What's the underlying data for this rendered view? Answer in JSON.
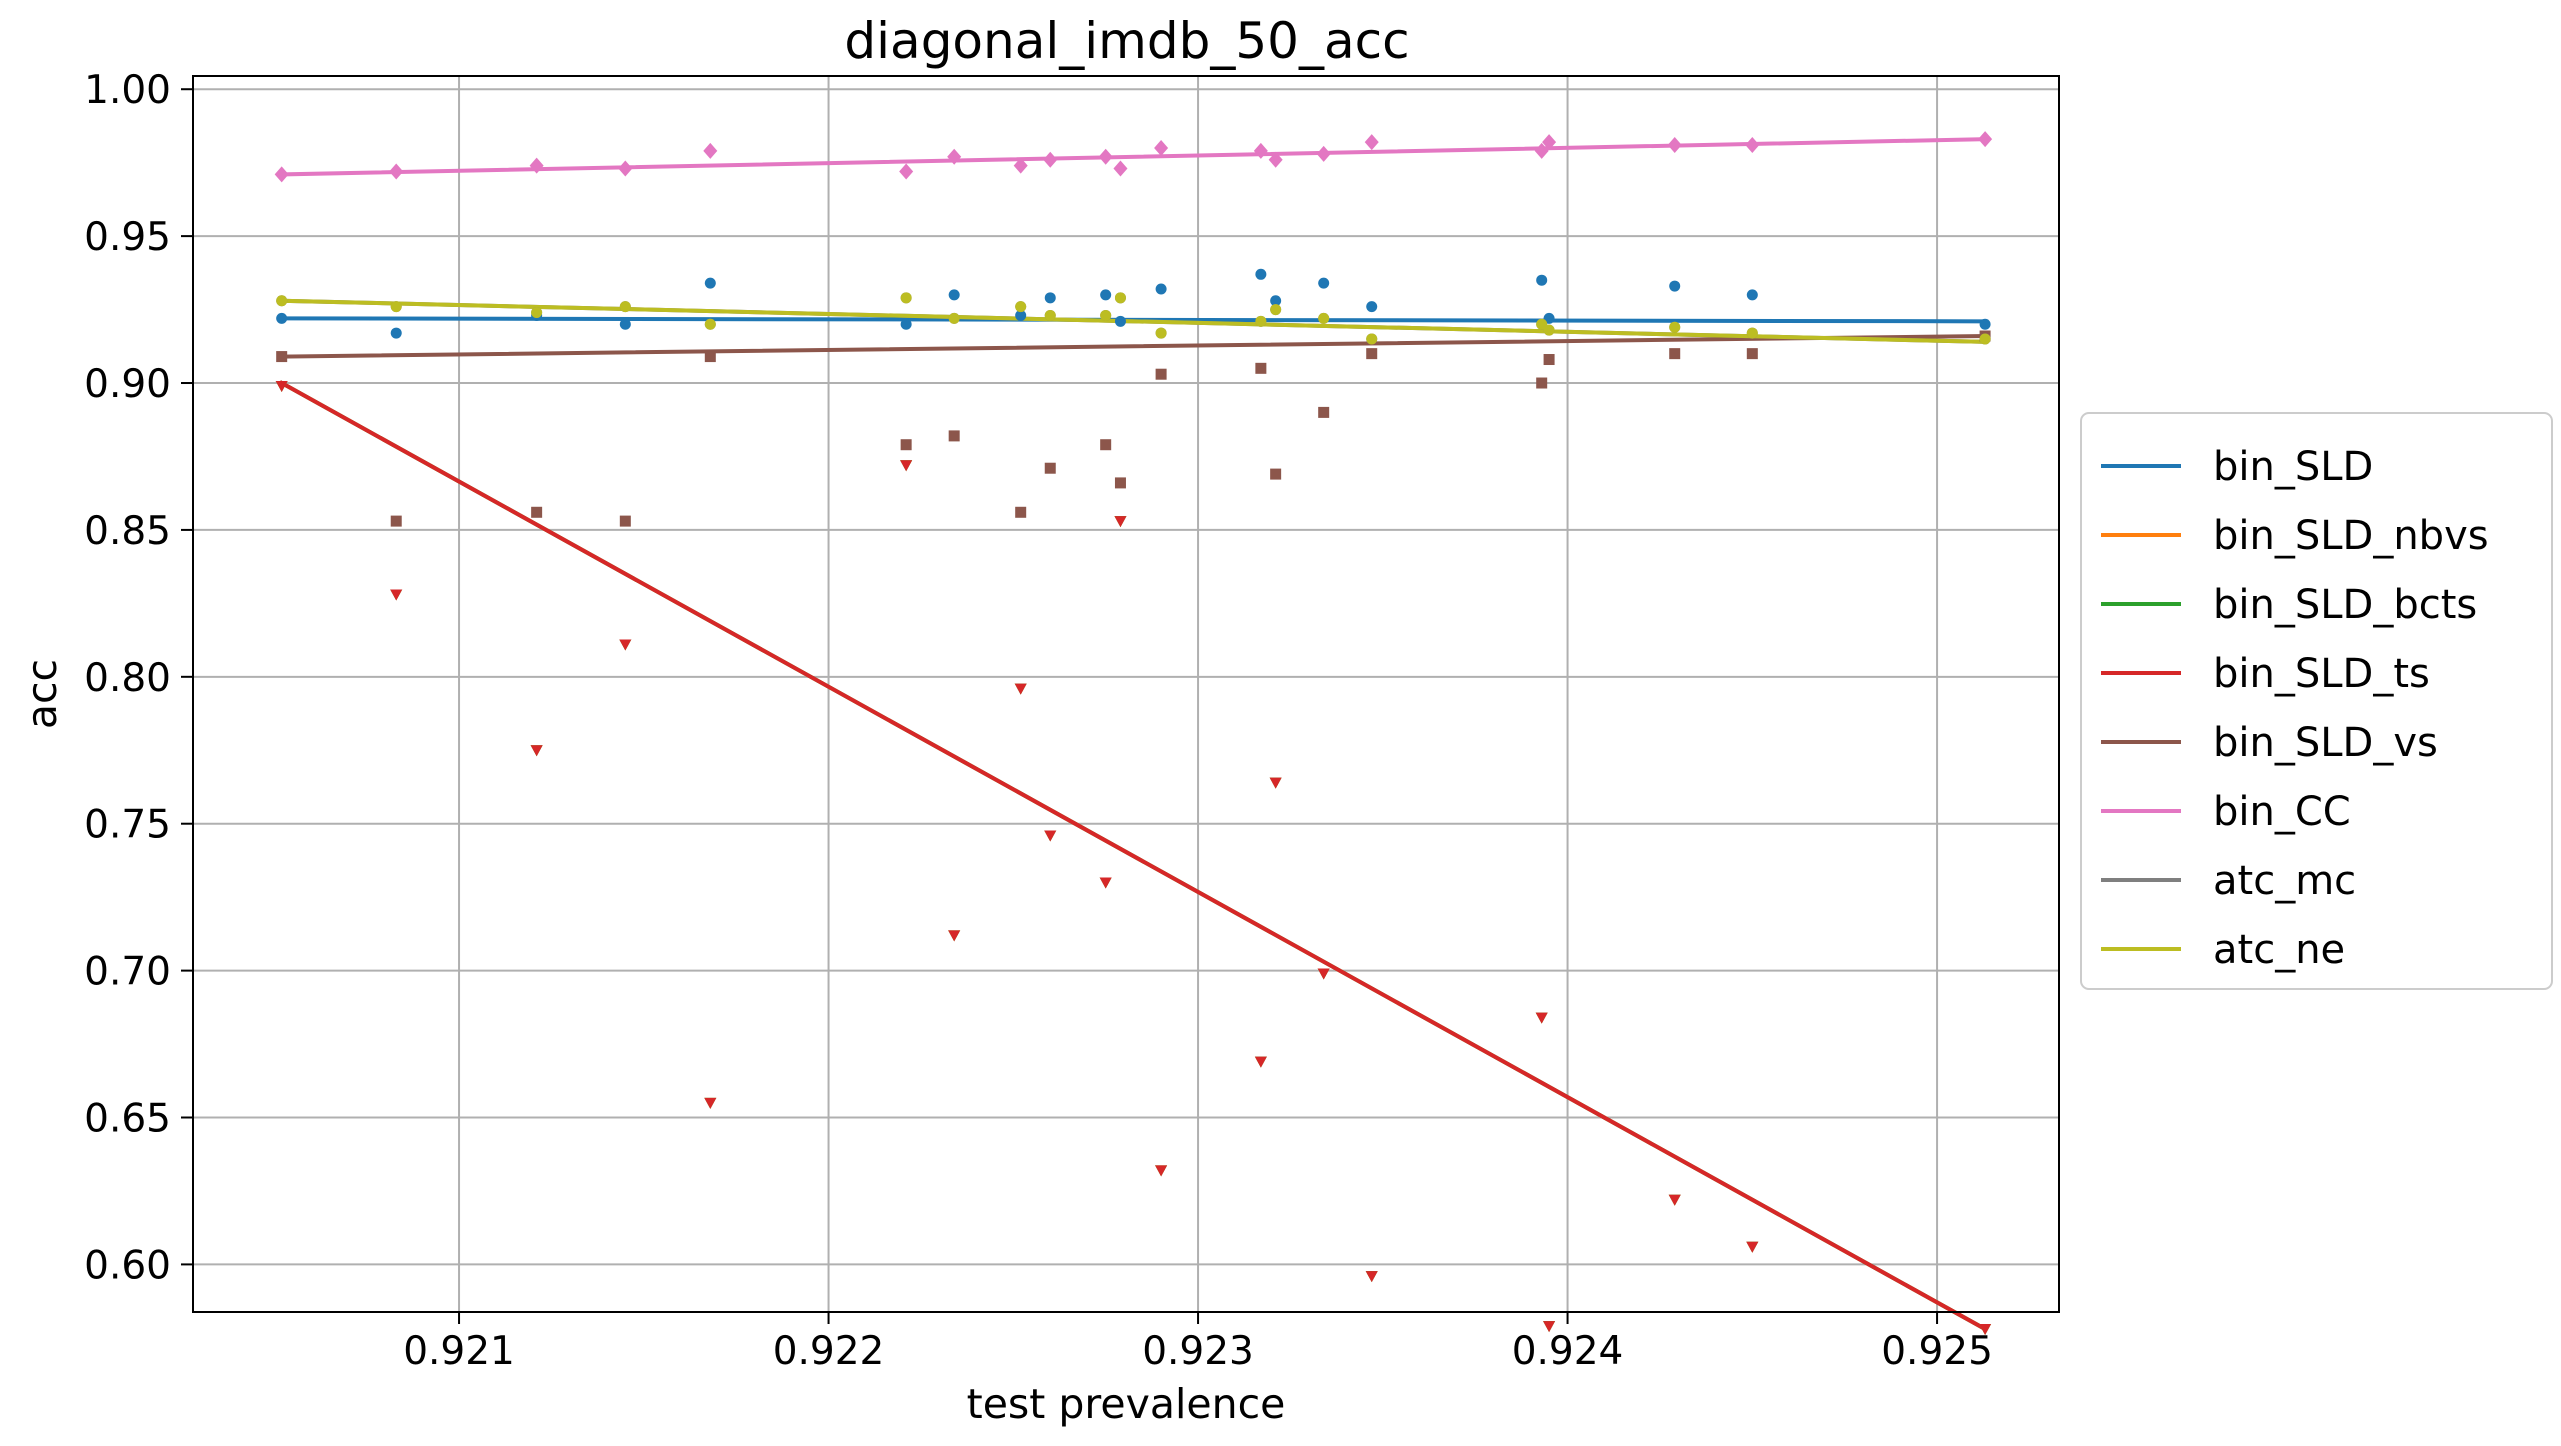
{
  "chart_data": {
    "type": "scatter",
    "title": "diagonal_imdb_50_acc",
    "xlabel": "test prevalence",
    "ylabel": "acc",
    "xlim": [
      0.92028,
      0.92533
    ],
    "ylim": [
      0.5838,
      1.0045
    ],
    "xticks": [
      0.921,
      0.922,
      0.923,
      0.924,
      0.925
    ],
    "xtick_labels": [
      "0.921",
      "0.922",
      "0.923",
      "0.924",
      "0.925"
    ],
    "yticks": [
      0.6,
      0.65,
      0.7,
      0.75,
      0.8,
      0.85,
      0.9,
      0.95,
      1.0
    ],
    "ytick_labels": [
      "0.60",
      "0.65",
      "0.70",
      "0.75",
      "0.80",
      "0.85",
      "0.90",
      "0.95",
      "1.00"
    ],
    "grid": true,
    "legend_position": "center-right-outside",
    "x": [
      0.92052,
      0.92083,
      0.92121,
      0.92145,
      0.92168,
      0.92221,
      0.92234,
      0.92252,
      0.9226,
      0.92275,
      0.92279,
      0.9229,
      0.92317,
      0.92321,
      0.92334,
      0.92347,
      0.92393,
      0.92395,
      0.92429,
      0.9245,
      0.92513
    ],
    "series": [
      {
        "name": "bin_SLD",
        "color": "#1f77b4",
        "marker": "circle",
        "values": [
          0.922,
          0.917,
          0.923,
          0.92,
          0.934,
          0.92,
          0.93,
          0.923,
          0.929,
          0.93,
          0.921,
          0.932,
          0.937,
          0.928,
          0.934,
          0.926,
          0.935,
          0.922,
          0.933,
          0.93,
          0.92
        ],
        "trend": [
          0.922,
          0.921
        ]
      },
      {
        "name": "bin_SLD_nbvs",
        "color": "#ff7f0e",
        "marker": "triangle-down",
        "values": [
          0.899,
          0.828,
          0.775,
          0.811,
          0.655,
          0.872,
          0.712,
          0.796,
          0.746,
          0.73,
          0.853,
          0.632,
          0.669,
          0.764,
          0.699,
          0.596,
          0.684,
          0.579,
          0.622,
          0.606,
          0.578
        ],
        "trend": [
          0.9,
          0.578
        ]
      },
      {
        "name": "bin_SLD_bcts",
        "color": "#2ca02c",
        "marker": "triangle-down",
        "values": [
          0.899,
          0.828,
          0.775,
          0.811,
          0.655,
          0.872,
          0.712,
          0.796,
          0.746,
          0.73,
          0.853,
          0.632,
          0.669,
          0.764,
          0.699,
          0.596,
          0.684,
          0.579,
          0.622,
          0.606,
          0.578
        ],
        "trend": [
          0.9,
          0.578
        ]
      },
      {
        "name": "bin_SLD_ts",
        "color": "#d62728",
        "marker": "triangle-down",
        "values": [
          0.899,
          0.828,
          0.775,
          0.811,
          0.655,
          0.872,
          0.712,
          0.796,
          0.746,
          0.73,
          0.853,
          0.632,
          0.669,
          0.764,
          0.699,
          0.596,
          0.684,
          0.579,
          0.622,
          0.606,
          0.578
        ],
        "trend": [
          0.9,
          0.578
        ]
      },
      {
        "name": "bin_SLD_vs",
        "color": "#8c564b",
        "marker": "square",
        "values": [
          0.909,
          0.853,
          0.856,
          0.853,
          0.909,
          0.879,
          0.882,
          0.856,
          0.871,
          0.879,
          0.866,
          0.903,
          0.905,
          0.869,
          0.89,
          0.91,
          0.9,
          0.908,
          0.91,
          0.91,
          0.916
        ],
        "trend": [
          0.909,
          0.916
        ]
      },
      {
        "name": "bin_CC",
        "color": "#e377c2",
        "marker": "diamond",
        "values": [
          0.971,
          0.972,
          0.974,
          0.973,
          0.979,
          0.972,
          0.977,
          0.974,
          0.976,
          0.977,
          0.973,
          0.98,
          0.979,
          0.976,
          0.978,
          0.982,
          0.979,
          0.982,
          0.981,
          0.981,
          0.983
        ],
        "trend": [
          0.971,
          0.983
        ]
      },
      {
        "name": "atc_mc",
        "color": "#7f7f7f",
        "marker": "circle",
        "values": [
          0.928,
          0.926,
          0.924,
          0.926,
          0.92,
          0.929,
          0.922,
          0.926,
          0.923,
          0.923,
          0.929,
          0.917,
          0.921,
          0.925,
          0.922,
          0.915,
          0.92,
          0.918,
          0.919,
          0.917,
          0.915
        ],
        "trend": [
          0.928,
          0.914
        ]
      },
      {
        "name": "atc_ne",
        "color": "#bcbd22",
        "marker": "circle",
        "values": [
          0.928,
          0.926,
          0.924,
          0.926,
          0.92,
          0.929,
          0.922,
          0.926,
          0.923,
          0.923,
          0.929,
          0.917,
          0.921,
          0.925,
          0.922,
          0.915,
          0.92,
          0.918,
          0.919,
          0.917,
          0.915
        ],
        "trend": [
          0.928,
          0.914
        ]
      }
    ]
  }
}
